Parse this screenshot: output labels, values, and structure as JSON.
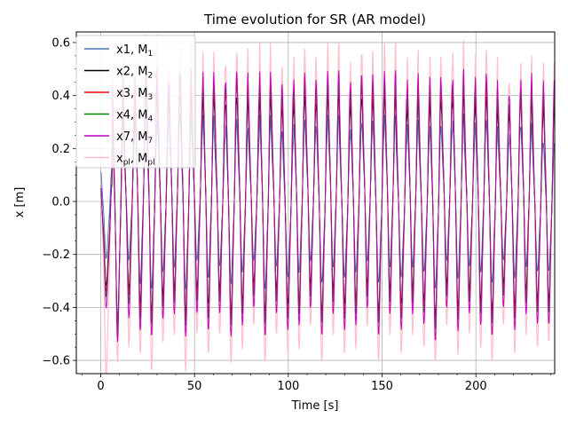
{
  "chart_data": {
    "type": "line",
    "title": "Time evolution for SR (AR model)",
    "xlabel": "Time [s]",
    "ylabel": "x [m]",
    "xlim": [
      -13,
      242
    ],
    "ylim": [
      -0.65,
      0.64
    ],
    "xticks": [
      0,
      50,
      100,
      150,
      200
    ],
    "yticks": [
      -0.6,
      -0.4,
      -0.2,
      0.0,
      0.2,
      0.4,
      0.6
    ],
    "ytick_labels": [
      "−0.6",
      "−0.4",
      "−0.2",
      "0.0",
      "0.2",
      "0.4",
      "0.6"
    ],
    "grid": true,
    "legend_position": "top-left",
    "oscillation": {
      "period_s": 6.05,
      "t_start": 0,
      "t_end": 242
    },
    "series": [
      {
        "name": "x1, M1",
        "legend_base": "x1, M",
        "legend_sub": "1",
        "color": "#4c72b0",
        "peaks": [
          0.11,
          0.3,
          0.2,
          0.32,
          0.28,
          0.25,
          0.3,
          0.28,
          0.24,
          0.3,
          0.22,
          0.28,
          0.25,
          0.22,
          0.3,
          0.24,
          0.2,
          0.28,
          0.26,
          0.24,
          0.3,
          0.22,
          0.26,
          0.28,
          0.24,
          0.3,
          0.2,
          0.28,
          0.22,
          0.26,
          0.24,
          0.3,
          0.22,
          0.28,
          0.26,
          0.2,
          0.25,
          0.27,
          0.2,
          0.2
        ],
        "troughs": [
          -0.2,
          -0.4,
          -0.2,
          -0.28,
          -0.3,
          -0.24,
          -0.22,
          -0.3,
          -0.2,
          -0.26,
          -0.22,
          -0.28,
          -0.24,
          -0.2,
          -0.3,
          -0.22,
          -0.26,
          -0.24,
          -0.2,
          -0.28,
          -0.22,
          -0.26,
          -0.24,
          -0.2,
          -0.28,
          -0.22,
          -0.26,
          -0.22,
          -0.24,
          -0.3,
          -0.2,
          -0.26,
          -0.22,
          -0.24,
          -0.28,
          -0.2,
          -0.26,
          -0.22,
          -0.24,
          -0.24
        ]
      },
      {
        "name": "x2, M2",
        "legend_base": "x2, M",
        "legend_sub": "2",
        "color": "#000000",
        "peaks": [
          0.05,
          0.35,
          0.25,
          0.38,
          0.4,
          0.32,
          0.36,
          0.38,
          0.3,
          0.38,
          0.33,
          0.35,
          0.36,
          0.3,
          0.38,
          0.32,
          0.3,
          0.36,
          0.34,
          0.32,
          0.38,
          0.3,
          0.35,
          0.36,
          0.32,
          0.38,
          0.28,
          0.36,
          0.3,
          0.35,
          0.33,
          0.38,
          0.3,
          0.36,
          0.34,
          0.28,
          0.34,
          0.36,
          0.28,
          0.34
        ],
        "troughs": [
          -0.3,
          -0.45,
          -0.3,
          -0.35,
          -0.38,
          -0.32,
          -0.3,
          -0.38,
          -0.3,
          -0.35,
          -0.3,
          -0.38,
          -0.34,
          -0.28,
          -0.38,
          -0.3,
          -0.35,
          -0.34,
          -0.28,
          -0.38,
          -0.3,
          -0.35,
          -0.34,
          -0.28,
          -0.38,
          -0.3,
          -0.35,
          -0.3,
          -0.34,
          -0.4,
          -0.28,
          -0.36,
          -0.3,
          -0.34,
          -0.38,
          -0.28,
          -0.36,
          -0.3,
          -0.34,
          -0.34
        ]
      },
      {
        "name": "x3, M3",
        "legend_base": "x3, M",
        "legend_sub": "3",
        "color": "#ff0000",
        "peaks": [
          0.04,
          0.38,
          0.28,
          0.42,
          0.43,
          0.35,
          0.4,
          0.42,
          0.33,
          0.42,
          0.36,
          0.4,
          0.4,
          0.33,
          0.42,
          0.35,
          0.33,
          0.4,
          0.38,
          0.35,
          0.42,
          0.33,
          0.39,
          0.4,
          0.35,
          0.42,
          0.31,
          0.4,
          0.33,
          0.39,
          0.36,
          0.42,
          0.33,
          0.4,
          0.38,
          0.31,
          0.32,
          0.4,
          0.31,
          0.38
        ],
        "troughs": [
          -0.32,
          -0.45,
          -0.32,
          -0.38,
          -0.4,
          -0.34,
          -0.32,
          -0.4,
          -0.32,
          -0.38,
          -0.32,
          -0.4,
          -0.36,
          -0.3,
          -0.4,
          -0.32,
          -0.38,
          -0.36,
          -0.3,
          -0.4,
          -0.32,
          -0.38,
          -0.36,
          -0.3,
          -0.4,
          -0.32,
          -0.38,
          -0.32,
          -0.36,
          -0.42,
          -0.3,
          -0.38,
          -0.32,
          -0.36,
          -0.4,
          -0.3,
          -0.38,
          -0.32,
          -0.36,
          -0.36
        ]
      },
      {
        "name": "x4, M4",
        "legend_base": "x4, M",
        "legend_sub": "4",
        "color": "#008000",
        "peaks": [
          0.04,
          0.4,
          0.3,
          0.43,
          0.44,
          0.37,
          0.42,
          0.43,
          0.35,
          0.43,
          0.38,
          0.42,
          0.42,
          0.35,
          0.43,
          0.37,
          0.35,
          0.42,
          0.4,
          0.37,
          0.43,
          0.35,
          0.41,
          0.42,
          0.37,
          0.43,
          0.33,
          0.42,
          0.35,
          0.41,
          0.38,
          0.43,
          0.35,
          0.42,
          0.4,
          0.33,
          0.34,
          0.42,
          0.33,
          0.4
        ],
        "troughs": [
          -0.34,
          -0.45,
          -0.35,
          -0.4,
          -0.42,
          -0.36,
          -0.34,
          -0.42,
          -0.34,
          -0.4,
          -0.34,
          -0.42,
          -0.38,
          -0.32,
          -0.42,
          -0.34,
          -0.4,
          -0.38,
          -0.32,
          -0.42,
          -0.34,
          -0.4,
          -0.38,
          -0.32,
          -0.42,
          -0.34,
          -0.4,
          -0.34,
          -0.38,
          -0.44,
          -0.32,
          -0.4,
          -0.34,
          -0.38,
          -0.42,
          -0.32,
          -0.4,
          -0.34,
          -0.38,
          -0.38
        ]
      },
      {
        "name": "x7, M7",
        "legend_base": "x7, M",
        "legend_sub": "7",
        "color": "#bf00bf",
        "peaks": [
          0.05,
          0.42,
          0.33,
          0.44,
          0.46,
          0.4,
          0.44,
          0.45,
          0.38,
          0.45,
          0.4,
          0.44,
          0.44,
          0.38,
          0.45,
          0.4,
          0.38,
          0.44,
          0.42,
          0.4,
          0.45,
          0.38,
          0.43,
          0.44,
          0.4,
          0.45,
          0.36,
          0.44,
          0.38,
          0.43,
          0.4,
          0.45,
          0.38,
          0.44,
          0.42,
          0.36,
          0.37,
          0.44,
          0.36,
          0.42
        ],
        "troughs": [
          -0.38,
          -0.48,
          -0.4,
          -0.44,
          -0.46,
          -0.4,
          -0.38,
          -0.46,
          -0.38,
          -0.44,
          -0.38,
          -0.46,
          -0.42,
          -0.36,
          -0.46,
          -0.38,
          -0.44,
          -0.42,
          -0.36,
          -0.46,
          -0.38,
          -0.44,
          -0.42,
          -0.36,
          -0.46,
          -0.38,
          -0.44,
          -0.38,
          -0.42,
          -0.48,
          -0.36,
          -0.44,
          -0.38,
          -0.42,
          -0.46,
          -0.36,
          -0.44,
          -0.38,
          -0.42,
          -0.42
        ]
      },
      {
        "name": "xpl, Mpl",
        "legend_base": "x",
        "legend_sub": "pl",
        "legend_mid": ", M",
        "legend_sub2": "pl",
        "color": "#ffc0cb",
        "peaks": [
          0.08,
          0.5,
          0.4,
          0.5,
          0.58,
          0.45,
          0.5,
          0.55,
          0.42,
          0.52,
          0.46,
          0.5,
          0.52,
          0.42,
          0.55,
          0.46,
          0.43,
          0.52,
          0.5,
          0.46,
          0.55,
          0.42,
          0.5,
          0.52,
          0.46,
          0.55,
          0.4,
          0.52,
          0.42,
          0.5,
          0.46,
          0.55,
          0.42,
          0.52,
          0.5,
          0.4,
          0.42,
          0.5,
          0.4,
          0.48
        ],
        "troughs": [
          -0.62,
          -0.55,
          -0.5,
          -0.52,
          -0.58,
          -0.48,
          -0.45,
          -0.58,
          -0.45,
          -0.52,
          -0.45,
          -0.55,
          -0.5,
          -0.42,
          -0.55,
          -0.45,
          -0.52,
          -0.5,
          -0.42,
          -0.55,
          -0.45,
          -0.52,
          -0.5,
          -0.42,
          -0.55,
          -0.45,
          -0.52,
          -0.45,
          -0.5,
          -0.55,
          -0.42,
          -0.52,
          -0.45,
          -0.5,
          -0.55,
          -0.42,
          -0.52,
          -0.45,
          -0.5,
          -0.48
        ]
      }
    ]
  }
}
